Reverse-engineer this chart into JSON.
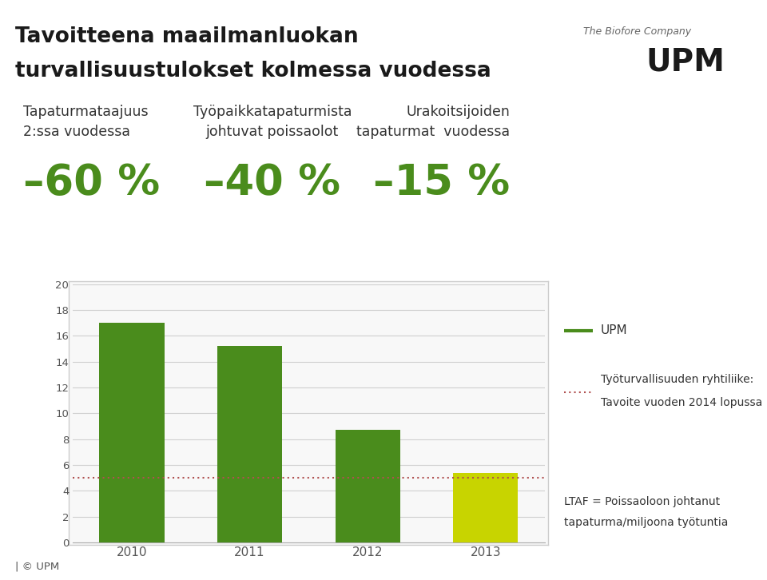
{
  "title_line1": "Tavoitteena maailmanluokan",
  "title_line2": "turvallisuustulokset kolmessa vuodessa",
  "kpi": [
    {
      "label": "Tapaturmataajuus\n2:ssa vuodessa",
      "value": "–60 %"
    },
    {
      "label": "Työpaikkatapaturmista\njohtuvat poissaolot",
      "value": "–40 %"
    },
    {
      "label": "Urakoitsijoiden\ntapaturmat  vuodessa",
      "value": "–15 %"
    }
  ],
  "bar_years": [
    2010,
    2011,
    2012,
    2013
  ],
  "bar_values": [
    17.0,
    15.2,
    8.7,
    5.4
  ],
  "bar_colors": [
    "#4a8c1c",
    "#4a8c1c",
    "#4a8c1c",
    "#c8d400"
  ],
  "dotted_line_y": 5.0,
  "dotted_line_color": "#b05050",
  "ylim": [
    0,
    20
  ],
  "yticks": [
    0,
    2,
    4,
    6,
    8,
    10,
    12,
    14,
    16,
    18,
    20
  ],
  "legend_upm_label": "UPM",
  "legend_upm_color": "#4a8c1c",
  "legend_dotted_label_1": "Työturvallisuuden ryhtiliike:",
  "legend_dotted_label_2": "Tavoite vuoden 2014 lopussa",
  "legend_dotted_color": "#b05050",
  "footnote_1": "LTAF = Poissaoloon johtanut",
  "footnote_2": "tapaturma/miljoona työtuntia",
  "copyright": "| © UPM",
  "bg_color": "#ffffff",
  "kpi_value_color": "#4a8c1c",
  "title_color": "#1a1a1a",
  "kpi_label_color": "#333333",
  "text_color": "#333333",
  "grid_color": "#d0d0d0",
  "chart_border_color": "#cccccc"
}
